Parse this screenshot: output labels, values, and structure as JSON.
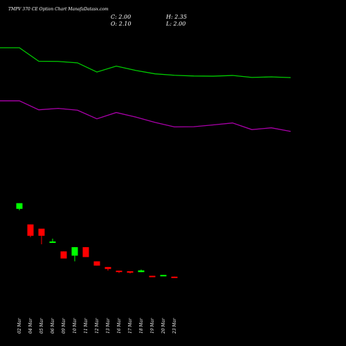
{
  "header": {
    "title": "TMPV 370  CE Option  Chart ManafaDatasx.com",
    "close": "C: 2.00",
    "open": "O: 2.10",
    "high": "H: 2.35",
    "low": "L: 2.00"
  },
  "colors": {
    "background": "#000000",
    "bullish": "#00ff00",
    "bearish": "#ff0000",
    "line_upper": "#00cc00",
    "line_lower": "#aa00aa",
    "text": "#ffffff"
  },
  "chart_data": {
    "type": "candlestick",
    "categories": [
      "02 Mar",
      "04 Mar",
      "05 Mar",
      "06 Mar",
      "09 Mar",
      "10 Mar",
      "11 Mar",
      "12 Mar",
      "13 Mar",
      "16 Mar",
      "17 Mar",
      "18 Mar",
      "19 Mar",
      "20 Mar",
      "23 Mar"
    ],
    "candles": [
      {
        "date": "02 Mar",
        "open": 22.0,
        "close": 24.0,
        "high": 24.0,
        "low": 21.5
      },
      {
        "date": "04 Mar",
        "open": 16.5,
        "close": 12.5,
        "high": 16.5,
        "low": 12.0
      },
      {
        "date": "05 Mar",
        "open": 15.0,
        "close": 12.5,
        "high": 15.0,
        "low": 9.5
      },
      {
        "date": "06 Mar",
        "open": 10.0,
        "close": 10.5,
        "high": 11.5,
        "low": 10.0
      },
      {
        "date": "09 Mar",
        "open": 7.0,
        "close": 4.5,
        "high": 7.0,
        "low": 4.5
      },
      {
        "date": "10 Mar",
        "open": 5.5,
        "close": 8.5,
        "high": 8.5,
        "low": 3.5
      },
      {
        "date": "11 Mar",
        "open": 8.5,
        "close": 5.0,
        "high": 8.5,
        "low": 5.0
      },
      {
        "date": "12 Mar",
        "open": 3.5,
        "close": 2.0,
        "high": 3.5,
        "low": 2.0
      },
      {
        "date": "13 Mar",
        "open": 1.5,
        "close": 0.8,
        "high": 1.5,
        "low": 0.2
      },
      {
        "date": "16 Mar",
        "open": 0.2,
        "close": 0.0,
        "high": 0.2,
        "low": -0.6
      },
      {
        "date": "17 Mar",
        "open": 0.0,
        "close": -0.2,
        "high": 0.0,
        "low": -0.8
      },
      {
        "date": "18 Mar",
        "open": -0.3,
        "close": 0.3,
        "high": 0.6,
        "low": -0.3
      },
      {
        "date": "19 Mar",
        "open": -1.6,
        "close": -1.9,
        "high": -1.6,
        "low": -1.9
      },
      {
        "date": "20 Mar",
        "open": -1.5,
        "close": -1.3,
        "high": -1.3,
        "low": -1.7
      },
      {
        "date": "23 Mar",
        "open": -1.9,
        "close": -2.1,
        "high": -1.9,
        "low": -2.1
      }
    ],
    "series": [
      {
        "x": [
          0,
          2,
          4,
          6,
          8,
          10,
          12,
          14,
          16,
          18,
          20,
          22,
          24,
          26,
          28,
          30
        ],
        "values": [
          93,
          93,
          85.5,
          85.4,
          84.6,
          79.5,
          82.8,
          80.4,
          78.5,
          77.7,
          77.3,
          77.2,
          77.6,
          76.5,
          76.8,
          76.4
        ]
      },
      {
        "x": [
          0,
          2,
          4,
          6,
          8,
          10,
          12,
          14,
          16,
          18,
          20,
          22,
          24,
          26,
          28,
          30
        ],
        "values": [
          63.5,
          63.5,
          58.5,
          59.3,
          58.3,
          53.5,
          57.0,
          54.5,
          51.5,
          49.0,
          49.1,
          50.1,
          51.2,
          47.5,
          48.5,
          46.5
        ]
      }
    ]
  }
}
